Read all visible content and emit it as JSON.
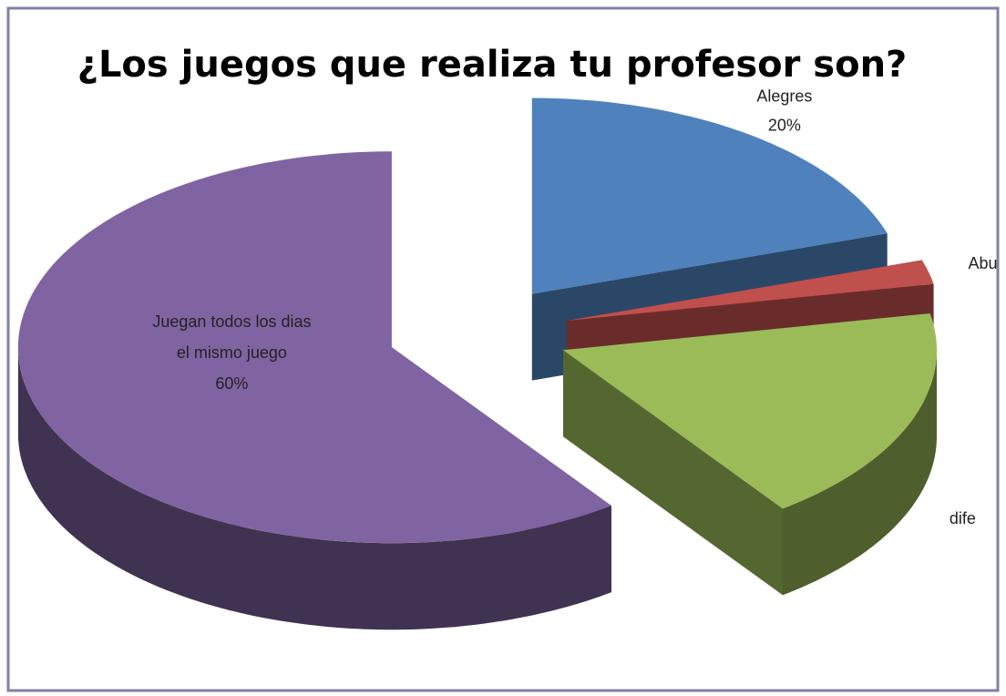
{
  "chart_data": {
    "type": "pie",
    "title": "¿Los juegos que realiza tu profesor son?",
    "categories": [
      "Alegres",
      "Abu",
      "dife",
      "Juegan todos los dias el mismo juego"
    ],
    "values": [
      20,
      2,
      18,
      60
    ],
    "value_labels": [
      "20%",
      null,
      null,
      "60%"
    ],
    "colors": [
      "#4f81bd",
      "#c0504d",
      "#9bbb59",
      "#8064a2"
    ]
  }
}
